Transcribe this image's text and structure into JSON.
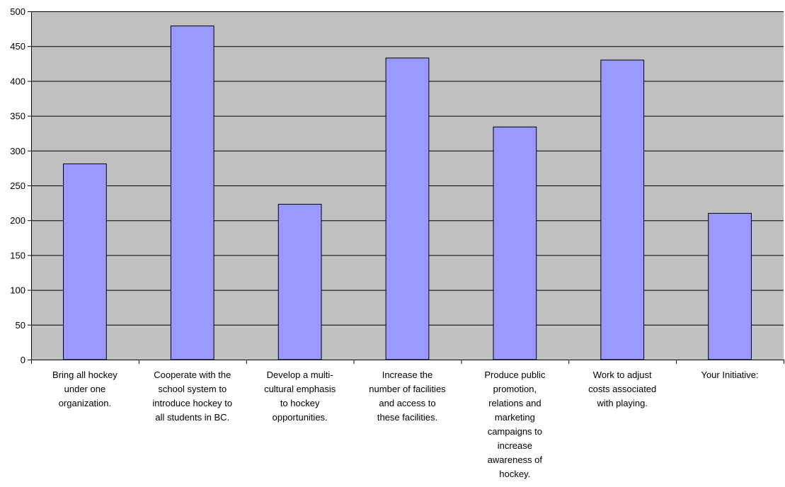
{
  "chart_data": {
    "type": "bar",
    "categories": [
      [
        "Bring all hockey",
        "under one",
        "organization."
      ],
      [
        "Cooperate with the",
        "school system to",
        "introduce hockey to",
        "all students in BC."
      ],
      [
        "Develop a multi-",
        "cultural emphasis",
        "to hockey",
        "opportunities."
      ],
      [
        "Increase the",
        "number of facilities",
        "and access to",
        "these facilities."
      ],
      [
        "Produce public",
        "promotion,",
        "relations and",
        "marketing",
        "campaigns to",
        "increase",
        "awareness of",
        "hockey."
      ],
      [
        "Work to adjust",
        "costs associated",
        "with playing."
      ],
      [
        "Your Initiative:"
      ]
    ],
    "values": [
      281,
      479,
      223,
      433,
      334,
      430,
      210
    ],
    "ylim": [
      0,
      500
    ],
    "yticks": [
      0,
      50,
      100,
      150,
      200,
      250,
      300,
      350,
      400,
      450,
      500
    ],
    "title": "",
    "xlabel": "",
    "ylabel": "",
    "grid": true,
    "legend": "none",
    "colors": {
      "plot_background": "#C0C0C0",
      "bar_fill": "#9999FF",
      "bar_stroke": "#000000",
      "gridline": "#000000",
      "axis": "#000000"
    }
  }
}
